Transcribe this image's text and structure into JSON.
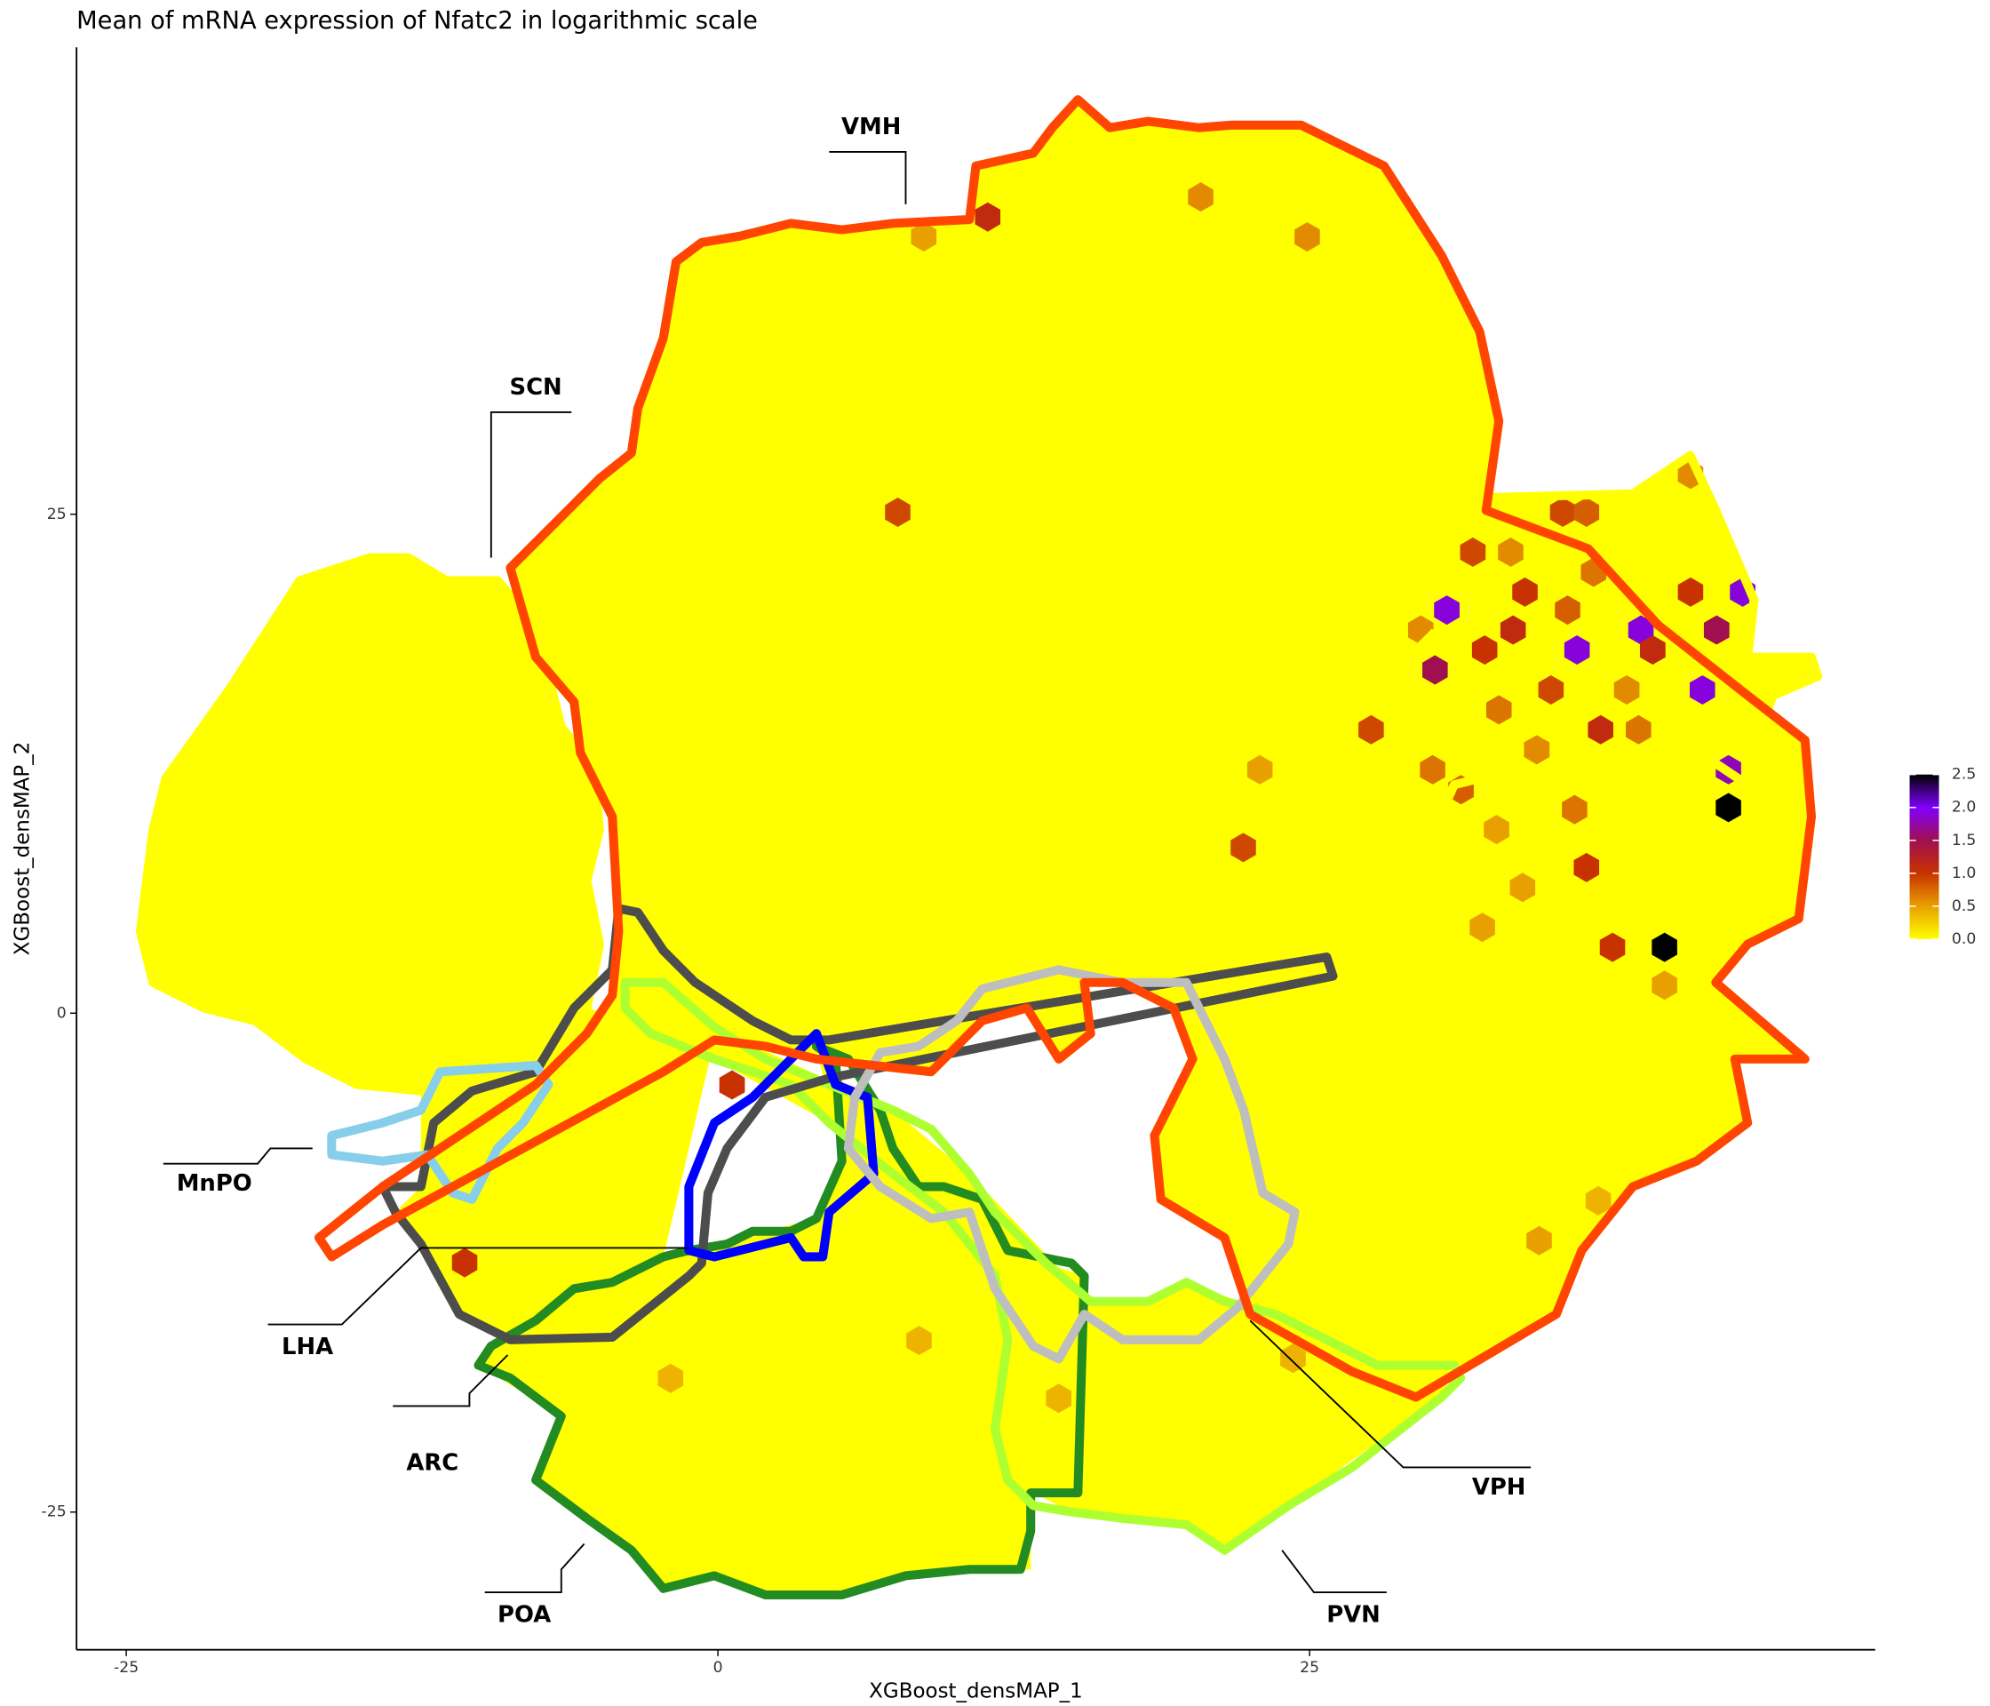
{
  "chart_data": {
    "type": "hexbin",
    "title": "Mean of mRNA expression of Nfatc2 in logarithmic scale",
    "x_label": "XGBoost_densMAP_1",
    "y_label": "XGBoost_densMAP_2",
    "xlim": [
      -27.1,
      48.9
    ],
    "ylim": [
      -31.9,
      48.4
    ],
    "xticks": [
      -25,
      0,
      25
    ],
    "yticks": [
      -25,
      0,
      25
    ],
    "regions": [
      "VMH",
      "SCN",
      "MnPO",
      "LHA",
      "ARC",
      "POA",
      "PVN",
      "VPH"
    ],
    "colorbar": {
      "lim": [
        0,
        2.5
      ],
      "ticks": [
        {
          "value": 0,
          "label": "0.0"
        },
        0.5,
        {
          "value": 1,
          "label": "1.0"
        },
        1.5,
        {
          "value": 2,
          "label": "2.0"
        },
        2.5
      ],
      "colors": [
        "#ffff00",
        "#e8a000",
        "#c83200",
        "#a01050",
        "#8000ff",
        "#000000"
      ]
    },
    "hexes": {
      "x": [
        11.4,
        42.7,
        40.0,
        30.8,
        36.3,
        39.0,
        43.3,
        41.6,
        30.3,
        42.2,
        42.7,
        7.6,
        -10.7,
        22.2,
        36.7,
        37.8,
        33.6,
        32.4,
        34.1,
        35.7,
        36.7,
        37.3,
        27.6,
        31.9,
        39.5,
        41.1,
        35.2,
        0.6,
        20.4,
        24.9,
        8.7,
        41.1,
        40.0,
        34.7,
        37.2,
        24.3,
        -2.0,
        8.5,
        14.4,
        22.9,
        33.0,
        34.6,
        31.4,
        36.2,
        38.4,
        32.9,
        30.2,
        35.9,
        33.5,
        29.7,
        38.9,
        34.0,
        32.3,
        37.0
      ],
      "y": [
        39.9,
        10.3,
        3.3,
        20.2,
        18.2,
        19.2,
        21.1,
        16.2,
        17.2,
        19.2,
        12.2,
        25.1,
        -12.5,
        8.3,
        7.3,
        3.3,
        19.2,
        18.2,
        21.1,
        25.1,
        25.1,
        14.2,
        14.2,
        23.1,
        18.2,
        21.1,
        16.2,
        -3.6,
        40.9,
        38.9,
        38.9,
        27.0,
        1.4,
        -11.4,
        -9.4,
        -17.3,
        -18.3,
        -16.4,
        -19.3,
        12.2,
        15.2,
        13.2,
        11.2,
        10.2,
        16.2,
        9.2,
        12.2,
        20.2,
        23.1,
        19.2,
        14.2,
        6.3,
        4.3,
        22.1
      ],
      "values": [
        1.1,
        2.5,
        2.5,
        1.9,
        1.9,
        1.9,
        1.9,
        1.9,
        1.5,
        1.5,
        1.8,
        0.9,
        1.0,
        0.9,
        1.0,
        1.0,
        1.1,
        1.0,
        1.0,
        0.9,
        0.8,
        1.1,
        0.9,
        0.9,
        1.1,
        1.0,
        0.9,
        1.0,
        0.6,
        0.6,
        0.5,
        0.6,
        0.5,
        0.5,
        0.4,
        0.4,
        0.4,
        0.4,
        0.4,
        0.5,
        0.7,
        0.6,
        0.8,
        0.7,
        0.6,
        0.5,
        0.7,
        0.8,
        0.6,
        0.6,
        0.7,
        0.5,
        0.5,
        0.7
      ]
    }
  }
}
